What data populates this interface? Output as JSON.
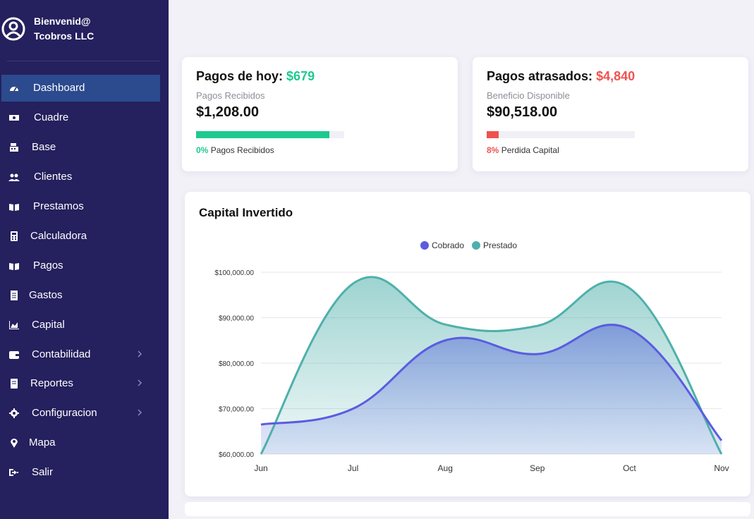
{
  "sidebar": {
    "greeting": "Bienvenid@",
    "company": "Tcobros LLC",
    "items": [
      {
        "label": "Dashboard",
        "icon": "dashboard-icon",
        "active": true
      },
      {
        "label": "Cuadre",
        "icon": "money-icon"
      },
      {
        "label": "Base",
        "icon": "cash-register-icon"
      },
      {
        "label": "Clientes",
        "icon": "users-icon"
      },
      {
        "label": "Prestamos",
        "icon": "book-open-icon"
      },
      {
        "label": "Calculadora",
        "icon": "calculator-icon"
      },
      {
        "label": "Pagos",
        "icon": "book-open-icon"
      },
      {
        "label": "Gastos",
        "icon": "receipt-icon"
      },
      {
        "label": "Capital",
        "icon": "area-chart-icon"
      },
      {
        "label": "Contabilidad",
        "icon": "wallet-icon",
        "submenu": true
      },
      {
        "label": "Reportes",
        "icon": "book-icon",
        "submenu": true
      },
      {
        "label": "Configuracion",
        "icon": "gear-icon",
        "submenu": true
      },
      {
        "label": "Mapa",
        "icon": "map-pin-icon"
      },
      {
        "label": "Salir",
        "icon": "logout-icon"
      }
    ]
  },
  "cards": {
    "hoy": {
      "title": "Pagos de hoy:",
      "amount": "$679",
      "sub_label": "Pagos Recibidos",
      "value": "$1,208.00",
      "progress": 0.9,
      "percent": "0%",
      "foot_label": "Pagos Recibidos",
      "color": "#1ec98f"
    },
    "atrasados": {
      "title": "Pagos atrasados:",
      "amount": "$4,840",
      "sub_label": "Beneficio Disponible",
      "value": "$90,518.00",
      "progress": 0.08,
      "percent": "8%",
      "foot_label": "Perdida Capital",
      "color": "#ef5350"
    }
  },
  "chart_data": {
    "type": "area",
    "title": "Capital Invertido",
    "categories": [
      "Jun",
      "Jul",
      "Aug",
      "Sep",
      "Oct",
      "Nov"
    ],
    "y_ticks": [
      "$60,000.00",
      "$70,000.00",
      "$80,000.00",
      "$90,000.00",
      "$100,000.00"
    ],
    "ylim": [
      60000,
      100000
    ],
    "grid": true,
    "legend_position": "top",
    "series": [
      {
        "name": "Cobrado",
        "color": "#5b5ce0",
        "values": [
          66500,
          70000,
          85000,
          82000,
          87500,
          63000
        ]
      },
      {
        "name": "Prestado",
        "color": "#4fb0ab",
        "values": [
          60000,
          97500,
          88500,
          88200,
          96500,
          60000
        ]
      }
    ]
  }
}
